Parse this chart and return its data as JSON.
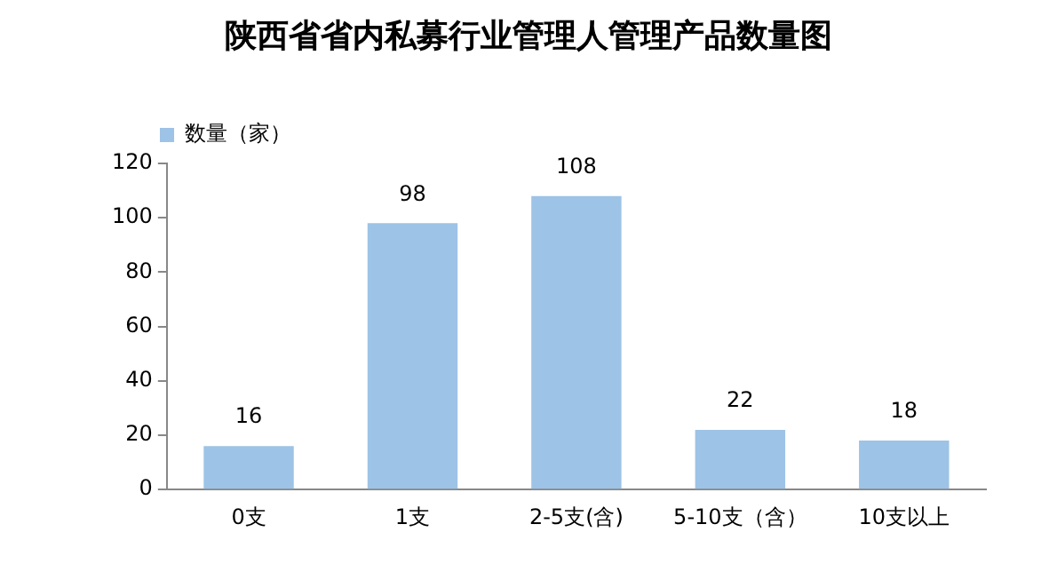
{
  "chart_data": {
    "type": "bar",
    "title": "陕西省省内私募行业管理人管理产品数量图",
    "categories": [
      "0支",
      "1支",
      "2-5支(含)",
      "5-10支（含）",
      "10支以上"
    ],
    "series": [
      {
        "name": "数量（家）",
        "color": "#9dc3e6",
        "values": [
          16,
          98,
          108,
          22,
          18
        ]
      }
    ],
    "ylim": [
      0,
      120
    ],
    "yticks": [
      0,
      20,
      40,
      60,
      80,
      100,
      120
    ],
    "grid": false,
    "legend": "top left",
    "data_labels": true
  }
}
